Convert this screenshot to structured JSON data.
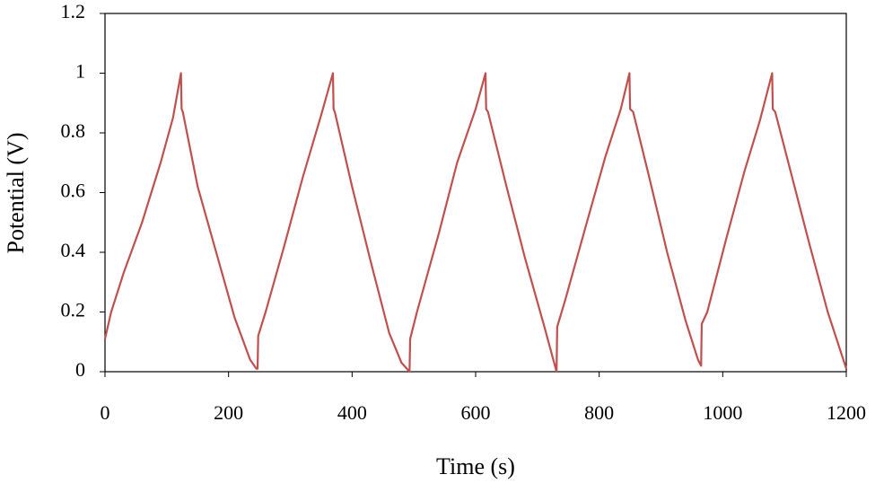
{
  "chart_data": {
    "type": "line",
    "x_label": "Time (s)",
    "y_label": "Potential (V)",
    "xlim": [
      0,
      1200
    ],
    "xticks": [
      0,
      200,
      400,
      600,
      800,
      1000,
      1200
    ],
    "ylim": [
      0,
      1.2
    ],
    "yticks": [
      0,
      0.2,
      0.4,
      0.6,
      0.8,
      1,
      1.2
    ],
    "grid": false,
    "series": [
      {
        "color": "#c0504d",
        "x": [
          0,
          10,
          30,
          60,
          90,
          110,
          123,
          124,
          126,
          150,
          180,
          210,
          235,
          245,
          247,
          248,
          260,
          290,
          320,
          350,
          369,
          370,
          372,
          400,
          430,
          460,
          480,
          493,
          494,
          505,
          540,
          570,
          600,
          616,
          617,
          620,
          650,
          680,
          710,
          731,
          732,
          745,
          780,
          810,
          835,
          849,
          850,
          855,
          880,
          910,
          940,
          960,
          965,
          966,
          975,
          1005,
          1035,
          1060,
          1080,
          1081,
          1085,
          1110,
          1140,
          1170,
          1200
        ],
        "values": [
          0.11,
          0.2,
          0.33,
          0.5,
          0.7,
          0.85,
          1.0,
          0.88,
          0.87,
          0.62,
          0.4,
          0.18,
          0.04,
          0.01,
          0.01,
          0.12,
          0.2,
          0.42,
          0.65,
          0.86,
          1.0,
          0.88,
          0.87,
          0.62,
          0.37,
          0.13,
          0.03,
          0.0,
          0.11,
          0.2,
          0.46,
          0.7,
          0.88,
          1.0,
          0.88,
          0.87,
          0.62,
          0.38,
          0.16,
          0.0,
          0.15,
          0.24,
          0.5,
          0.72,
          0.88,
          1.0,
          0.88,
          0.87,
          0.66,
          0.4,
          0.17,
          0.04,
          0.02,
          0.16,
          0.2,
          0.44,
          0.67,
          0.84,
          1.0,
          0.88,
          0.87,
          0.67,
          0.43,
          0.2,
          0.01
        ]
      }
    ]
  }
}
